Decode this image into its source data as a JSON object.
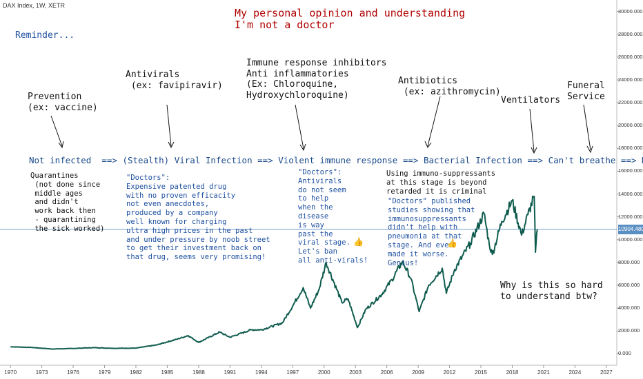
{
  "header": {
    "symbol": "DAX Index, 1W, XETR",
    "opinion_line1": "My personal opinion and understanding",
    "opinion_line2": "I'm not a doctor",
    "reminder": "Reminder..."
  },
  "stages": {
    "prevention": "Prevention\n(ex: vaccine)",
    "antivirals": "Antivirals\n (ex: favipiravir)",
    "immune": "Immune response inhibitors\nAnti inflammatories\n(Ex: Chloroquine,\nHydroxychloroquine)",
    "antibiotics": "Antibiotics\n (ex: azithromycin)",
    "ventilators": "Ventilators",
    "funeral": "Funeral\nService"
  },
  "flow": "Not infected  ==> (Stealth) Viral Infection ==> Violent immune response ==> Bacterial Infection ==> Can't breathe ==> Ded",
  "notes": {
    "quarantines": "Quarantines\n (not done since\n middle ages\n and didn't\n work back then\n - quarantining\n the sick worked)",
    "doctors_drug": "\"Doctors\":\nExpensive patented drug\nwith no proven efficacity\nnot even anecdotes,\nproduced by a company\nwell known for charging\nultra high prices in the past\nand under pressure by noob street\nto get their investment back on\nthat drug, seems very promising!",
    "doctors_antivirals": "\"Doctors\":\nAntivirals\ndo not seem\nto help\nwhen the\ndisease\nis way\npast the\nviral stage.\nLet's ban\nall anti-virals!",
    "immunosuppressants": "Using immuno-suppressants\nat this stage is beyond\nretarded it is criminal",
    "doctors_studies": "\"Doctors\" published\nstudies showing that\nimmunosuppressants\ndidn't help with\npneumonia at that\nstage. And even\nmade it worse.\nGenius!",
    "question": "Why is this so hard\nto understand btw?"
  },
  "price_label": "10904.480",
  "colors": {
    "line": "#0f5c4e",
    "price_line": "#5a8fc4",
    "red": "#b00000",
    "blue": "#1e50a0"
  },
  "chart_data": {
    "type": "line",
    "series": [
      {
        "values": [
          [
            1970,
            620
          ],
          [
            1972,
            560
          ],
          [
            1974,
            420
          ],
          [
            1976,
            470
          ],
          [
            1978,
            540
          ],
          [
            1980,
            480
          ],
          [
            1982,
            500
          ],
          [
            1984,
            780
          ],
          [
            1986,
            1300
          ],
          [
            1987,
            1600
          ],
          [
            1988,
            1000
          ],
          [
            1990,
            1900
          ],
          [
            1991,
            1450
          ],
          [
            1993,
            2100
          ],
          [
            1994,
            2100
          ],
          [
            1996,
            2700
          ],
          [
            1997,
            4200
          ],
          [
            1998,
            5800
          ],
          [
            1998.7,
            4000
          ],
          [
            1999.5,
            5600
          ],
          [
            2000.2,
            8000
          ],
          [
            2001.7,
            4500
          ],
          [
            2002.3,
            4800
          ],
          [
            2003.2,
            2300
          ],
          [
            2004,
            3900
          ],
          [
            2005.5,
            5200
          ],
          [
            2006.5,
            6500
          ],
          [
            2007.5,
            8100
          ],
          [
            2008.3,
            6600
          ],
          [
            2009.1,
            3700
          ],
          [
            2010,
            6000
          ],
          [
            2011.3,
            7500
          ],
          [
            2011.7,
            5300
          ],
          [
            2012.5,
            7400
          ],
          [
            2014,
            9700
          ],
          [
            2015.3,
            12300
          ],
          [
            2015.8,
            9600
          ],
          [
            2016.1,
            8700
          ],
          [
            2017,
            11600
          ],
          [
            2018,
            13400
          ],
          [
            2018.9,
            10400
          ],
          [
            2019.5,
            12200
          ],
          [
            2020.1,
            13800
          ],
          [
            2020.22,
            8900
          ],
          [
            2020.4,
            10904.48
          ]
        ]
      }
    ],
    "xlim": [
      1969,
      2028
    ],
    "ylim": [
      -1000,
      31000
    ],
    "x_ticks": [
      1970,
      1973,
      1976,
      1979,
      1982,
      1985,
      1988,
      1991,
      1994,
      1997,
      2000,
      2003,
      2006,
      2009,
      2012,
      2015,
      2018,
      2021,
      2024,
      2027
    ],
    "y_ticks": [
      0,
      2000,
      4000,
      6000,
      8000,
      10000,
      12000,
      14000,
      16000,
      18000,
      20000,
      22000,
      24000,
      26000,
      28000,
      30000
    ],
    "y_tick_labels": [
      "0.000",
      "2000.000",
      "4000.000",
      "6000.000",
      "8000.000",
      "10000.000",
      "12000.000",
      "14000.000",
      "16000.000",
      "18000.000",
      "20000.000",
      "22000.000",
      "24000.000",
      "26000.000",
      "28000.000",
      "30000.000"
    ],
    "last_price": 10904.48,
    "grid": false
  }
}
